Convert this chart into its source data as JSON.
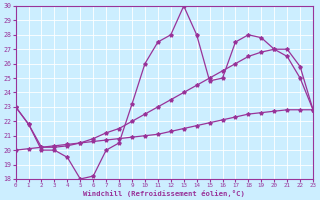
{
  "xlabel": "Windchill (Refroidissement éolien,°C)",
  "xlim": [
    0,
    23
  ],
  "ylim": [
    18,
    30
  ],
  "yticks": [
    18,
    19,
    20,
    21,
    22,
    23,
    24,
    25,
    26,
    27,
    28,
    29,
    30
  ],
  "xticks": [
    0,
    1,
    2,
    3,
    4,
    5,
    6,
    7,
    8,
    9,
    10,
    11,
    12,
    13,
    14,
    15,
    16,
    17,
    18,
    19,
    20,
    21,
    22,
    23
  ],
  "bg_color": "#cceeff",
  "line_color": "#993399",
  "grid_color": "#ffffff",
  "series": [
    {
      "x": [
        0,
        1,
        2,
        3,
        4,
        5,
        6,
        7,
        8,
        9,
        10,
        11,
        12,
        13,
        14,
        15,
        16,
        17,
        18,
        19,
        20,
        21,
        22,
        23
      ],
      "y": [
        23,
        21.8,
        20.0,
        20.0,
        19.5,
        18.0,
        18.2,
        20.0,
        20.5,
        23.2,
        26.0,
        27.5,
        28.0,
        30.0,
        28.0,
        24.8,
        25.0,
        27.5,
        28.0,
        27.8,
        27.0,
        26.5,
        25.0,
        22.8
      ]
    },
    {
      "x": [
        0,
        1,
        2,
        3,
        4,
        5,
        6,
        7,
        8,
        9,
        10,
        11,
        12,
        13,
        14,
        15,
        16,
        17,
        18,
        19,
        20,
        21,
        22,
        23
      ],
      "y": [
        23,
        21.8,
        20.2,
        20.2,
        20.3,
        20.5,
        20.8,
        21.2,
        21.5,
        22.0,
        22.5,
        23.0,
        23.5,
        24.0,
        24.5,
        25.0,
        25.5,
        26.0,
        26.5,
        26.8,
        27.0,
        27.0,
        25.8,
        22.8
      ]
    },
    {
      "x": [
        0,
        1,
        2,
        3,
        4,
        5,
        6,
        7,
        8,
        9,
        10,
        11,
        12,
        13,
        14,
        15,
        16,
        17,
        18,
        19,
        20,
        21,
        22,
        23
      ],
      "y": [
        20.0,
        20.1,
        20.2,
        20.3,
        20.4,
        20.5,
        20.6,
        20.7,
        20.8,
        20.9,
        21.0,
        21.1,
        21.3,
        21.5,
        21.7,
        21.9,
        22.1,
        22.3,
        22.5,
        22.6,
        22.7,
        22.8,
        22.8,
        22.8
      ]
    }
  ]
}
